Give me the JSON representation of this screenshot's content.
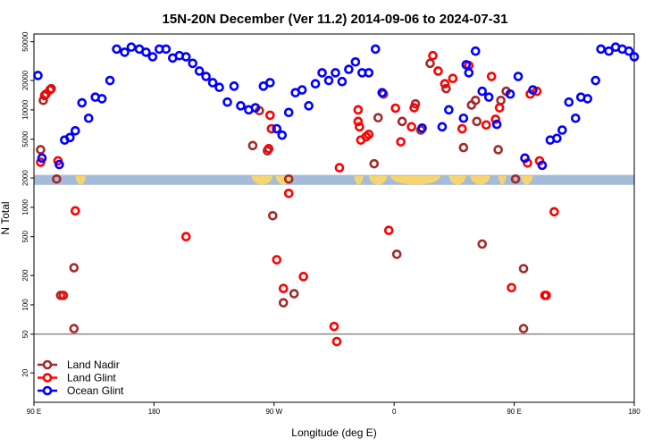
{
  "chart_data": {
    "type": "scatter",
    "title": "15N-20N December (Ver 11.2)   2014-09-06 to 2024-07-31",
    "xlabel": "Longitude (deg E)",
    "ylabel": "N Total",
    "xlim": [
      90,
      540
    ],
    "ylim": [
      10,
      60000
    ],
    "yscale": "log",
    "x_ticks": [
      {
        "value": 90,
        "label": "90 E"
      },
      {
        "value": 180,
        "label": "180"
      },
      {
        "value": 270,
        "label": "90 W"
      },
      {
        "value": 360,
        "label": "0"
      },
      {
        "value": 450,
        "label": "90 E"
      },
      {
        "value": 540,
        "label": "180"
      }
    ],
    "y_ticks": [
      {
        "value": 20,
        "label": "20"
      },
      {
        "value": 50,
        "label": "50"
      },
      {
        "value": 100,
        "label": "100"
      },
      {
        "value": 200,
        "label": "200"
      },
      {
        "value": 500,
        "label": "500"
      },
      {
        "value": 1000,
        "label": "1000"
      },
      {
        "value": 2000,
        "label": "2000"
      },
      {
        "value": 5000,
        "label": "5000"
      },
      {
        "value": 10000,
        "label": "10000"
      },
      {
        "value": 20000,
        "label": "20000"
      },
      {
        "value": 50000,
        "label": "50000"
      }
    ],
    "reference_line": 50,
    "land_band": {
      "ymin": 1700,
      "ymax": 2150
    },
    "legend_position": "bottom-left",
    "series": [
      {
        "name": "Land Nadir",
        "color": "#a52a2a",
        "points": [
          [
            95,
            3900
          ],
          [
            97,
            12500
          ],
          [
            99,
            14500
          ],
          [
            103,
            16500
          ],
          [
            107,
            1950
          ],
          [
            110,
            125
          ],
          [
            120,
            240
          ],
          [
            120,
            57
          ],
          [
            254,
            4300
          ],
          [
            259,
            9800
          ],
          [
            265,
            3800
          ],
          [
            269,
            820
          ],
          [
            277,
            105
          ],
          [
            281,
            1950
          ],
          [
            285,
            130
          ],
          [
            345,
            2800
          ],
          [
            348,
            8300
          ],
          [
            352,
            14500
          ],
          [
            362,
            330
          ],
          [
            366,
            7600
          ],
          [
            376,
            11500
          ],
          [
            380,
            6200
          ],
          [
            387,
            30000
          ],
          [
            399,
            16500
          ],
          [
            412,
            4100
          ],
          [
            418,
            11200
          ],
          [
            421,
            12500
          ],
          [
            422,
            7600
          ],
          [
            426,
            420
          ],
          [
            438,
            3900
          ],
          [
            440,
            12500
          ],
          [
            444,
            15500
          ],
          [
            451,
            1950
          ],
          [
            457,
            235
          ],
          [
            457,
            57
          ]
        ]
      },
      {
        "name": "Land Glint",
        "color": "#ff0000",
        "points": [
          [
            95,
            2900
          ],
          [
            98,
            14000
          ],
          [
            102,
            16000
          ],
          [
            108,
            3000
          ],
          [
            112,
            125
          ],
          [
            121,
            920
          ],
          [
            204,
            500
          ],
          [
            266,
            4000
          ],
          [
            267,
            8800
          ],
          [
            268,
            6400
          ],
          [
            272,
            290
          ],
          [
            277,
            147
          ],
          [
            281,
            1390
          ],
          [
            292,
            195
          ],
          [
            315,
            60
          ],
          [
            317,
            42
          ],
          [
            319,
            2550
          ],
          [
            333,
            7600
          ],
          [
            333,
            10000
          ],
          [
            334,
            6700
          ],
          [
            335,
            4900
          ],
          [
            339,
            5300
          ],
          [
            341,
            5600
          ],
          [
            356,
            580
          ],
          [
            361,
            10400
          ],
          [
            365,
            4700
          ],
          [
            373,
            6700
          ],
          [
            375,
            10500
          ],
          [
            389,
            36000
          ],
          [
            393,
            25000
          ],
          [
            398,
            18500
          ],
          [
            404,
            21000
          ],
          [
            411,
            6400
          ],
          [
            416,
            28500
          ],
          [
            429,
            7000
          ],
          [
            433,
            22000
          ],
          [
            436,
            8000
          ],
          [
            439,
            10500
          ],
          [
            448,
            150
          ],
          [
            460,
            2850
          ],
          [
            462,
            14500
          ],
          [
            467,
            15500
          ],
          [
            469,
            3000
          ],
          [
            473,
            125
          ],
          [
            474,
            125
          ],
          [
            480,
            900
          ]
        ]
      },
      {
        "name": "Ocean Glint",
        "color": "#0000ff",
        "points": [
          [
            93,
            22500
          ],
          [
            96,
            3200
          ],
          [
            109,
            2750
          ],
          [
            113,
            4900
          ],
          [
            117,
            5200
          ],
          [
            121,
            6100
          ],
          [
            126,
            11800
          ],
          [
            131,
            8200
          ],
          [
            136,
            13500
          ],
          [
            141,
            13000
          ],
          [
            147,
            20000
          ],
          [
            152,
            42000
          ],
          [
            158,
            39000
          ],
          [
            163,
            44000
          ],
          [
            169,
            42000
          ],
          [
            174,
            39000
          ],
          [
            179,
            35000
          ],
          [
            184,
            42000
          ],
          [
            189,
            42000
          ],
          [
            194,
            34000
          ],
          [
            199,
            36000
          ],
          [
            204,
            35000
          ],
          [
            209,
            30000
          ],
          [
            214,
            25000
          ],
          [
            219,
            22000
          ],
          [
            224,
            19000
          ],
          [
            229,
            17000
          ],
          [
            235,
            12000
          ],
          [
            240,
            17500
          ],
          [
            245,
            11000
          ],
          [
            251,
            10000
          ],
          [
            256,
            10500
          ],
          [
            262,
            17500
          ],
          [
            267,
            19000
          ],
          [
            272,
            6400
          ],
          [
            276,
            5500
          ],
          [
            281,
            9400
          ],
          [
            286,
            15000
          ],
          [
            291,
            16000
          ],
          [
            296,
            11000
          ],
          [
            301,
            18500
          ],
          [
            306,
            24000
          ],
          [
            311,
            20000
          ],
          [
            316,
            24000
          ],
          [
            321,
            19500
          ],
          [
            326,
            26000
          ],
          [
            331,
            31000
          ],
          [
            336,
            24000
          ],
          [
            341,
            24000
          ],
          [
            346,
            42000
          ],
          [
            351,
            15000
          ],
          [
            381,
            6500
          ],
          [
            396,
            6700
          ],
          [
            401,
            10000
          ],
          [
            412,
            8200
          ],
          [
            414,
            29000
          ],
          [
            416,
            24000
          ],
          [
            421,
            40000
          ],
          [
            426,
            15500
          ],
          [
            431,
            13500
          ],
          [
            437,
            7100
          ],
          [
            447,
            14500
          ],
          [
            453,
            22000
          ],
          [
            458,
            3200
          ],
          [
            464,
            16000
          ],
          [
            471,
            2700
          ],
          [
            477,
            4900
          ],
          [
            482,
            5100
          ],
          [
            486,
            6200
          ],
          [
            491,
            12000
          ],
          [
            496,
            8200
          ],
          [
            500,
            13500
          ],
          [
            505,
            13000
          ],
          [
            511,
            20000
          ],
          [
            515,
            42000
          ],
          [
            521,
            40000
          ],
          [
            526,
            44000
          ],
          [
            531,
            42000
          ],
          [
            536,
            40000
          ],
          [
            540,
            35000
          ]
        ]
      }
    ]
  }
}
